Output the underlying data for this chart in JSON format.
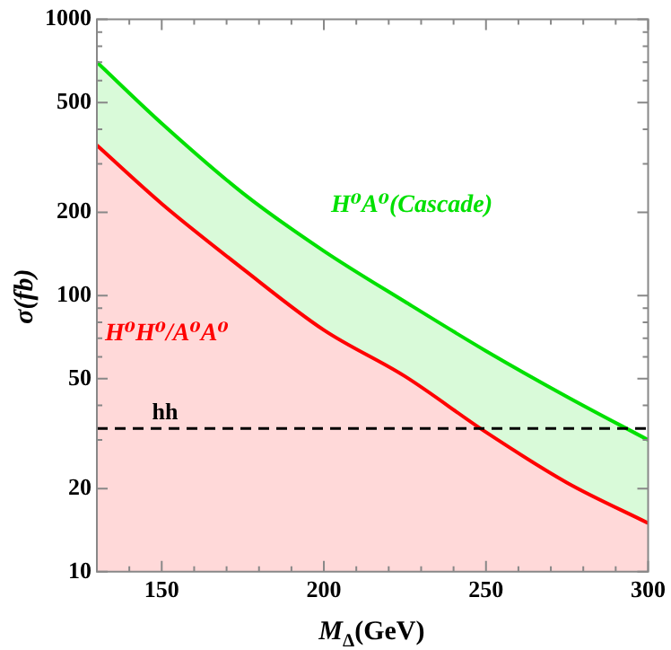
{
  "chart_data": {
    "type": "area",
    "xlabel": "M$_{Δ}$(GeV)",
    "ylabel": "σ(fb)",
    "log": "y",
    "x": [
      130,
      150,
      175,
      200,
      225,
      250,
      275,
      300
    ],
    "series": [
      {
        "name": "H⁰H⁰/A⁰A⁰",
        "color": "#ff0000",
        "values": [
          350,
          215,
          125,
          75,
          51,
          32,
          21,
          15
        ]
      },
      {
        "name": "H⁰A⁰(Cascade)",
        "color": "#00e000",
        "values": [
          700,
          420,
          235,
          145,
          95,
          63,
          43,
          30
        ]
      }
    ],
    "xlim": [
      130,
      300
    ],
    "xticks": [
      {
        "value": 140,
        "label": null
      },
      150,
      {
        "value": 160,
        "label": null
      },
      {
        "value": 170,
        "label": null
      },
      {
        "value": 180,
        "label": null
      },
      {
        "value": 190,
        "label": null
      },
      200,
      {
        "value": 210,
        "label": null
      },
      {
        "value": 220,
        "label": null
      },
      {
        "value": 230,
        "label": null
      },
      {
        "value": 240,
        "label": null
      },
      250,
      {
        "value": 260,
        "label": null
      },
      {
        "value": 270,
        "label": null
      },
      {
        "value": 280,
        "label": null
      },
      {
        "value": 290,
        "label": null
      },
      300
    ],
    "ylim": [
      10,
      1000
    ],
    "yticks": [
      10,
      20,
      {
        "value": 30,
        "label": null
      },
      {
        "value": 40,
        "label": null
      },
      50,
      {
        "value": 60,
        "label": null
      },
      {
        "value": 70,
        "label": null
      },
      {
        "value": 80,
        "label": null
      },
      {
        "value": 90,
        "label": null
      },
      100,
      200,
      {
        "value": 300,
        "label": null
      },
      {
        "value": 400,
        "label": null
      },
      500,
      {
        "value": 600,
        "label": null
      },
      {
        "value": 700,
        "label": null
      },
      {
        "value": 800,
        "label": null
      },
      {
        "value": 900,
        "label": null
      },
      1000
    ],
    "ref_lines": [
      {
        "axis": "y",
        "value": 33,
        "label": "hh",
        "color": "#000000",
        "line_style": "dashed"
      }
    ],
    "grid": false,
    "legend": false,
    "marker": "none"
  }
}
